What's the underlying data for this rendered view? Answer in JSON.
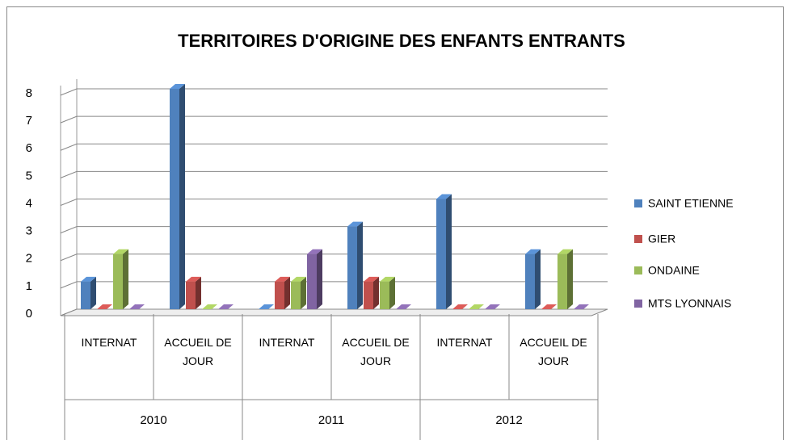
{
  "chart_data": {
    "type": "bar3d",
    "title": "TERRITOIRES D'ORIGINE DES ENFANTS ENTRANTS",
    "categories": [
      "INTERNAT",
      "ACCUEIL DE JOUR",
      "INTERNAT",
      "ACCUEIL DE JOUR",
      "INTERNAT",
      "ACCUEIL DE JOUR"
    ],
    "group_labels": [
      "2010",
      "2011",
      "2012"
    ],
    "series": [
      {
        "name": "SAINT ETIENNE",
        "color": "#4f81bd",
        "values": [
          1,
          8,
          0,
          3,
          4,
          2
        ]
      },
      {
        "name": "GIER",
        "color": "#c0504d",
        "values": [
          0,
          1,
          1,
          1,
          0,
          0
        ]
      },
      {
        "name": "ONDAINE",
        "color": "#9bbb59",
        "values": [
          2,
          0,
          1,
          1,
          0,
          2
        ]
      },
      {
        "name": "MTS LYONNAIS",
        "color": "#8064a2",
        "values": [
          0,
          0,
          2,
          0,
          0,
          0
        ]
      }
    ],
    "ylim": [
      0,
      8
    ],
    "yticks": [
      0,
      1,
      2,
      3,
      4,
      5,
      6,
      7,
      8
    ],
    "grid": true,
    "legend": "right"
  }
}
